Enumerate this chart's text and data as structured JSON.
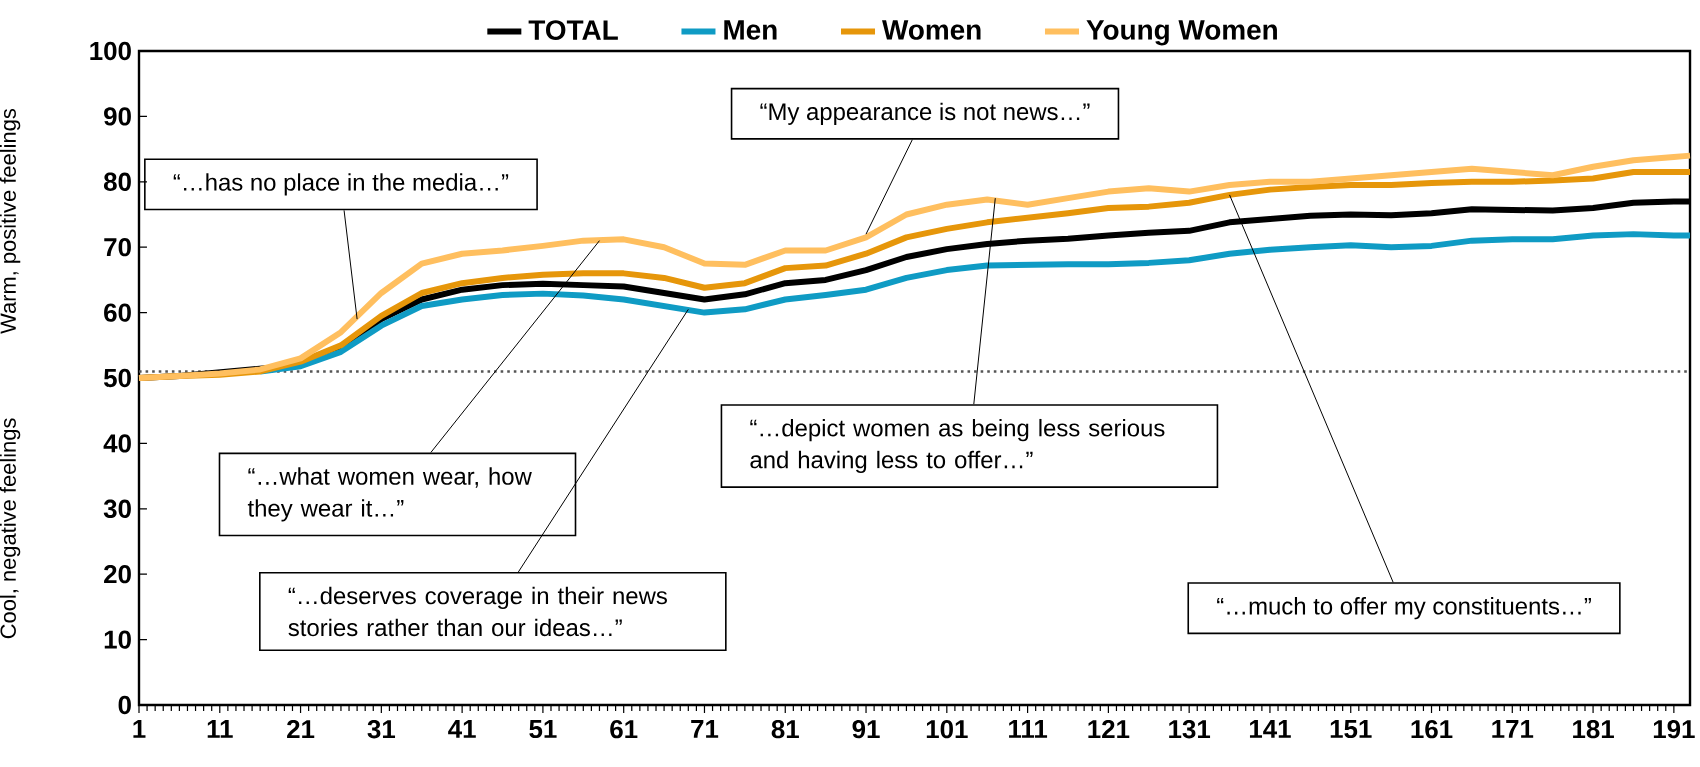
{
  "chart_data": {
    "type": "line",
    "ylabel": "Warm, positive feelings",
    "x": [
      1,
      6,
      11,
      16,
      21,
      26,
      31,
      36,
      41,
      46,
      51,
      56,
      61,
      66,
      71,
      76,
      81,
      86,
      91,
      96,
      101,
      106,
      111,
      116,
      121,
      126,
      131,
      136,
      141,
      146,
      151,
      156,
      161,
      166,
      171,
      176,
      181,
      186,
      191,
      193
    ],
    "xlim": [
      1,
      193
    ],
    "xticks": [
      1,
      11,
      21,
      31,
      41,
      51,
      61,
      71,
      81,
      91,
      101,
      111,
      121,
      131,
      141,
      151,
      161,
      171,
      181,
      191
    ],
    "ylim": [
      0,
      100
    ],
    "yticks": [
      0,
      10,
      20,
      30,
      40,
      50,
      60,
      70,
      80,
      90,
      100
    ],
    "series": [
      {
        "name": "TOTAL",
        "color": "#000000",
        "values": [
          50,
          50.3,
          null,
          null,
          52,
          54.5,
          59,
          62,
          63.5,
          64.2,
          64.4,
          64.2,
          64,
          63,
          62,
          62.8,
          64.5,
          65,
          66.5,
          68.5,
          69.7,
          70.5,
          71,
          71.3,
          71.8,
          72.2,
          72.5,
          73.8,
          74.3,
          74.8,
          75,
          74.9,
          75.2,
          75.8,
          75.7,
          75.6,
          76,
          76.8,
          77,
          77
        ]
      },
      {
        "name": "Men",
        "color": "#0f9bc4",
        "values": [
          null,
          null,
          null,
          51,
          51.8,
          54,
          58,
          61,
          62,
          62.7,
          62.9,
          62.6,
          62,
          61,
          60,
          60.5,
          62,
          62.7,
          63.5,
          65.3,
          66.5,
          67.2,
          67.3,
          67.4,
          67.4,
          67.6,
          68,
          69,
          69.6,
          70,
          70.3,
          70,
          70.2,
          71,
          71.2,
          71.2,
          71.8,
          72,
          71.8,
          71.8
        ]
      },
      {
        "name": "Women",
        "color": "#e6960a",
        "values": [
          50,
          50.3,
          50.5,
          51,
          52.5,
          55,
          59.5,
          63,
          64.5,
          65.3,
          65.8,
          66,
          66,
          65.3,
          63.8,
          64.5,
          66.8,
          67.2,
          69,
          71.5,
          72.8,
          73.8,
          74.5,
          75.2,
          76,
          76.2,
          76.8,
          78,
          78.8,
          79.2,
          79.5,
          79.5,
          79.8,
          80,
          80,
          80.2,
          80.5,
          81.5,
          81.5,
          81.5
        ]
      },
      {
        "name": "Young Women",
        "color": "#ffbf5f",
        "values": [
          50,
          50.3,
          50.7,
          51.3,
          53,
          57,
          63,
          67.5,
          69,
          69.5,
          70.2,
          71,
          71.2,
          70,
          67.5,
          67.3,
          69.5,
          69.5,
          71.5,
          75,
          76.5,
          77.3,
          76.5,
          77.5,
          78.5,
          79,
          78.5,
          79.5,
          80,
          80,
          80.5,
          81,
          81.5,
          82,
          81.5,
          81,
          82.3,
          83.3,
          83.8,
          84
        ]
      }
    ],
    "ref_lines": [
      {
        "axis": "y",
        "value": 51,
        "color": "#555555",
        "line_style": "dotted"
      }
    ],
    "annotations": [
      {
        "text": "“…has no place in the media…”",
        "x": 28,
        "y": 59
      },
      {
        "text": "“…what women wear, how they wear it…”",
        "x": 58,
        "y": 71
      },
      {
        "text": "“…deserves coverage in their news stories rather than our ideas…”",
        "x": 69,
        "y": 60.5
      },
      {
        "text": "“My appearance is not news…”",
        "x": 91,
        "y": 72
      },
      {
        "text": "“…depict women as being less serious and having less to offer…”",
        "x": 107,
        "y": 77.5
      },
      {
        "text": "“…much to offer my constituents…”",
        "x": 136,
        "y": 78
      },
      "Cool, negative feelings"
    ],
    "legend": "top",
    "marker": "none",
    "line_style": "solid",
    "grid": false
  }
}
